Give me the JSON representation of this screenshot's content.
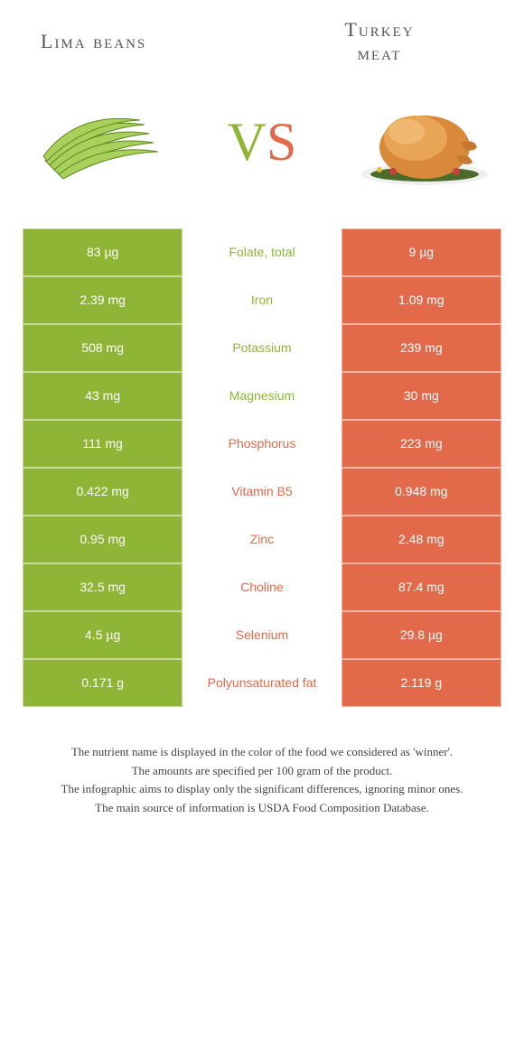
{
  "title_left": "Lima beans",
  "title_right": "Turkey meat",
  "vs_v": "V",
  "vs_s": "S",
  "colors": {
    "left": "#8fb536",
    "right": "#e26a4a",
    "left_text_loser": "#8fb536",
    "right_text_loser": "#e26a4a"
  },
  "rows": [
    {
      "left": "83 µg",
      "label": "Folate, total",
      "right": "9 µg",
      "winner": "left"
    },
    {
      "left": "2.39 mg",
      "label": "Iron",
      "right": "1.09 mg",
      "winner": "left"
    },
    {
      "left": "508 mg",
      "label": "Potassium",
      "right": "239 mg",
      "winner": "left"
    },
    {
      "left": "43 mg",
      "label": "Magnesium",
      "right": "30 mg",
      "winner": "left"
    },
    {
      "left": "111 mg",
      "label": "Phosphorus",
      "right": "223 mg",
      "winner": "right"
    },
    {
      "left": "0.422 mg",
      "label": "Vitamin B5",
      "right": "0.948 mg",
      "winner": "right"
    },
    {
      "left": "0.95 mg",
      "label": "Zinc",
      "right": "2.48 mg",
      "winner": "right"
    },
    {
      "left": "32.5 mg",
      "label": "Choline",
      "right": "87.4 mg",
      "winner": "right"
    },
    {
      "left": "4.5 µg",
      "label": "Selenium",
      "right": "29.8 µg",
      "winner": "right"
    },
    {
      "left": "0.171 g",
      "label": "Polyunsaturated fat",
      "right": "2.119 g",
      "winner": "right"
    }
  ],
  "footer": [
    "The nutrient name is displayed in the color of the food we considered as 'winner'.",
    "The amounts are specified per 100 gram of the product.",
    "The infographic aims to display only the significant differences, ignoring minor ones.",
    "The main source of information is USDA Food Composition Database."
  ]
}
